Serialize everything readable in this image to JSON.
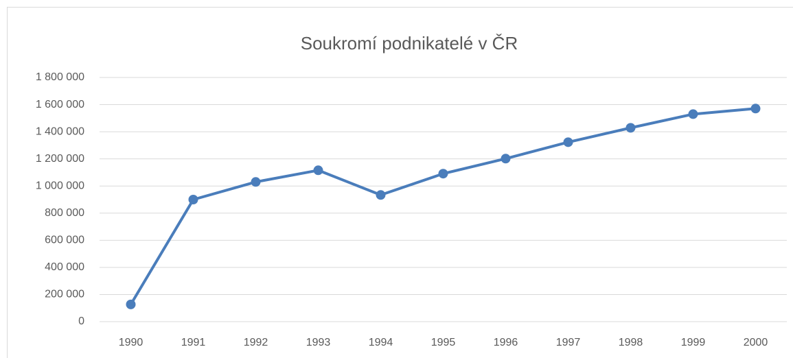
{
  "chart_data": {
    "type": "line",
    "title": "Soukromí podnikatelé v ČR",
    "categories": [
      "1990",
      "1991",
      "1992",
      "1993",
      "1994",
      "1995",
      "1996",
      "1997",
      "1998",
      "1999",
      "2000"
    ],
    "series": [
      {
        "name": "Soukromí podnikatelé",
        "color": "#4a7dbb",
        "values": [
          127000,
          900000,
          1030000,
          1116000,
          934000,
          1091000,
          1202000,
          1323000,
          1429000,
          1530000,
          1571000
        ]
      }
    ],
    "ylim": [
      0,
      1800000
    ],
    "yticks": [
      0,
      {
        "value": 200000,
        "label": "200 000"
      },
      {
        "value": 400000,
        "label": "400 000"
      },
      {
        "value": 600000,
        "label": "600 000"
      },
      {
        "value": 800000,
        "label": "800 000"
      },
      {
        "value": 1000000,
        "label": "1 000 000"
      },
      {
        "value": 1200000,
        "label": "1 200 000"
      },
      {
        "value": 1400000,
        "label": "1 400 000"
      },
      {
        "value": 1600000,
        "label": "1 600 000"
      },
      {
        "value": 1800000,
        "label": "1 800 000"
      }
    ],
    "grid": true
  }
}
